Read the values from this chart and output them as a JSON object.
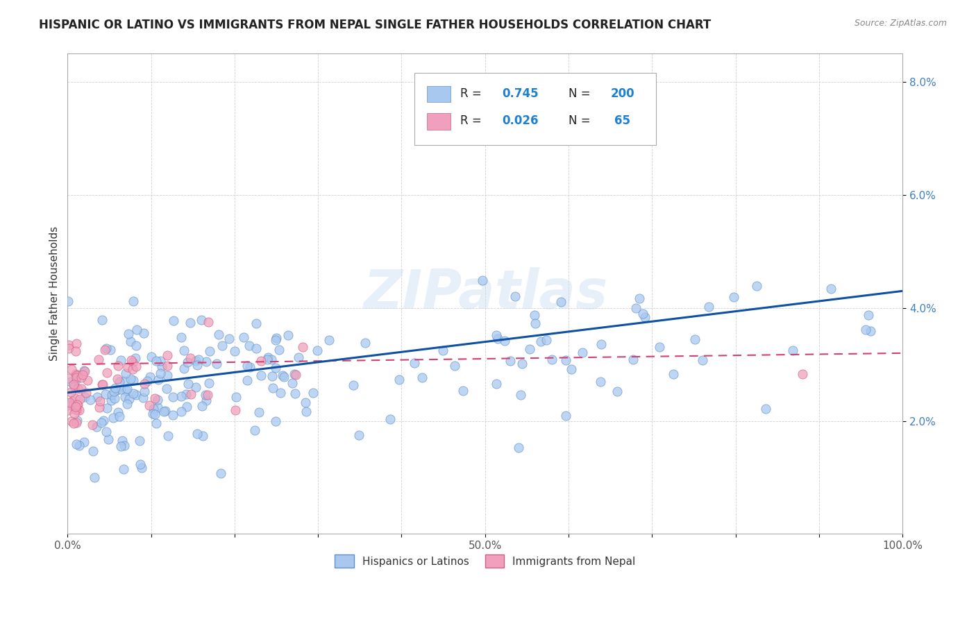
{
  "title": "HISPANIC OR LATINO VS IMMIGRANTS FROM NEPAL SINGLE FATHER HOUSEHOLDS CORRELATION CHART",
  "source": "Source: ZipAtlas.com",
  "ylabel": "Single Father Households",
  "xlim": [
    0,
    1.0
  ],
  "ylim": [
    0,
    0.085
  ],
  "yticks": [
    0.02,
    0.04,
    0.06,
    0.08
  ],
  "ytick_labels": [
    "2.0%",
    "4.0%",
    "6.0%",
    "8.0%"
  ],
  "xtick_labels": [
    "0.0%",
    "",
    "",
    "",
    "",
    "50.0%",
    "",
    "",
    "",
    "",
    "100.0%"
  ],
  "xticks": [
    0.0,
    0.1,
    0.2,
    0.3,
    0.4,
    0.5,
    0.6,
    0.7,
    0.8,
    0.9,
    1.0
  ],
  "color_blue": "#a8c8f0",
  "color_pink": "#f0a0bc",
  "color_blue_edge": "#6090c8",
  "color_pink_edge": "#d06080",
  "line_blue": "#1050a0",
  "line_pink": "#d04070",
  "watermark": "ZIPatlas",
  "background_color": "#ffffff",
  "grid_color": "#cccccc",
  "title_fontsize": 12,
  "axis_fontsize": 11,
  "tick_fontsize": 11,
  "legend_fontsize": 12
}
